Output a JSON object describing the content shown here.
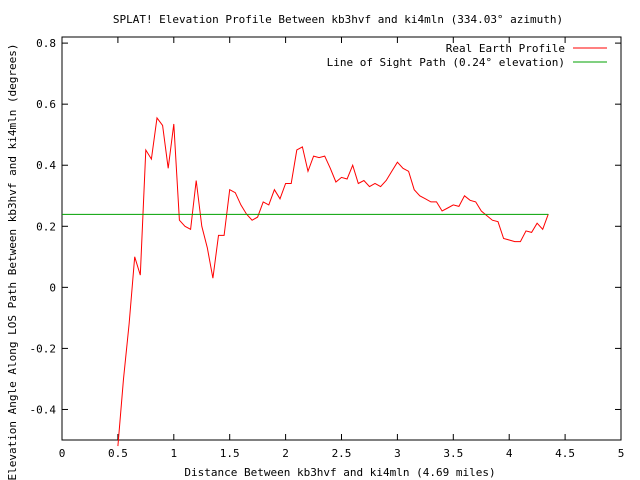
{
  "chart_data": {
    "type": "line",
    "title": "SPLAT! Elevation Profile Between kb3hvf and ki4mln (334.03° azimuth)",
    "xlabel": "Distance Between kb3hvf and ki4mln (4.69 miles)",
    "ylabel": "Elevation Angle Along LOS Path Between kb3hvf and ki4mln (degrees)",
    "xlim": [
      0,
      5
    ],
    "ylim": [
      -0.5,
      0.82
    ],
    "x_ticks": [
      0,
      0.5,
      1,
      1.5,
      2,
      2.5,
      3,
      3.5,
      4,
      4.5,
      5
    ],
    "x_tick_labels": [
      "0",
      "0.5",
      "1",
      "1.5",
      "2",
      "2.5",
      "3",
      "3.5",
      "4",
      "4.5",
      "5"
    ],
    "y_ticks": [
      -0.4,
      -0.2,
      0,
      0.2,
      0.4,
      0.6,
      0.8
    ],
    "y_tick_labels": [
      "-0.4",
      "-0.2",
      "0",
      "0.2",
      "0.4",
      "0.6",
      "0.8"
    ],
    "legend_position": "top-right",
    "series": [
      {
        "name": "Real Earth Profile",
        "color": "#ff0000",
        "points": [
          [
            0.5,
            -0.52
          ],
          [
            0.55,
            -0.3
          ],
          [
            0.6,
            -0.12
          ],
          [
            0.65,
            0.1
          ],
          [
            0.7,
            0.04
          ],
          [
            0.75,
            0.45
          ],
          [
            0.8,
            0.42
          ],
          [
            0.85,
            0.555
          ],
          [
            0.9,
            0.53
          ],
          [
            0.95,
            0.39
          ],
          [
            1.0,
            0.535
          ],
          [
            1.05,
            0.22
          ],
          [
            1.1,
            0.2
          ],
          [
            1.15,
            0.19
          ],
          [
            1.2,
            0.35
          ],
          [
            1.25,
            0.2
          ],
          [
            1.3,
            0.13
          ],
          [
            1.35,
            0.03
          ],
          [
            1.4,
            0.17
          ],
          [
            1.45,
            0.17
          ],
          [
            1.5,
            0.32
          ],
          [
            1.55,
            0.31
          ],
          [
            1.6,
            0.27
          ],
          [
            1.65,
            0.24
          ],
          [
            1.7,
            0.22
          ],
          [
            1.75,
            0.23
          ],
          [
            1.8,
            0.28
          ],
          [
            1.85,
            0.27
          ],
          [
            1.9,
            0.32
          ],
          [
            1.95,
            0.29
          ],
          [
            2.0,
            0.34
          ],
          [
            2.05,
            0.34
          ],
          [
            2.1,
            0.45
          ],
          [
            2.15,
            0.46
          ],
          [
            2.2,
            0.38
          ],
          [
            2.25,
            0.43
          ],
          [
            2.3,
            0.425
          ],
          [
            2.35,
            0.43
          ],
          [
            2.4,
            0.39
          ],
          [
            2.45,
            0.345
          ],
          [
            2.5,
            0.36
          ],
          [
            2.55,
            0.355
          ],
          [
            2.6,
            0.4
          ],
          [
            2.65,
            0.34
          ],
          [
            2.7,
            0.35
          ],
          [
            2.75,
            0.33
          ],
          [
            2.8,
            0.34
          ],
          [
            2.85,
            0.33
          ],
          [
            2.9,
            0.35
          ],
          [
            2.95,
            0.38
          ],
          [
            3.0,
            0.41
          ],
          [
            3.05,
            0.39
          ],
          [
            3.1,
            0.38
          ],
          [
            3.15,
            0.32
          ],
          [
            3.2,
            0.3
          ],
          [
            3.25,
            0.29
          ],
          [
            3.3,
            0.28
          ],
          [
            3.35,
            0.28
          ],
          [
            3.4,
            0.25
          ],
          [
            3.45,
            0.26
          ],
          [
            3.5,
            0.27
          ],
          [
            3.55,
            0.265
          ],
          [
            3.6,
            0.3
          ],
          [
            3.65,
            0.285
          ],
          [
            3.7,
            0.28
          ],
          [
            3.75,
            0.25
          ],
          [
            3.8,
            0.235
          ],
          [
            3.85,
            0.22
          ],
          [
            3.9,
            0.215
          ],
          [
            3.95,
            0.16
          ],
          [
            4.0,
            0.155
          ],
          [
            4.05,
            0.15
          ],
          [
            4.1,
            0.15
          ],
          [
            4.15,
            0.185
          ],
          [
            4.2,
            0.18
          ],
          [
            4.25,
            0.21
          ],
          [
            4.3,
            0.19
          ],
          [
            4.35,
            0.24
          ]
        ]
      },
      {
        "name": "Line of Sight Path (0.24° elevation)",
        "color": "#00a000",
        "points": [
          [
            0,
            0.239
          ],
          [
            4.35,
            0.239
          ]
        ]
      }
    ]
  }
}
